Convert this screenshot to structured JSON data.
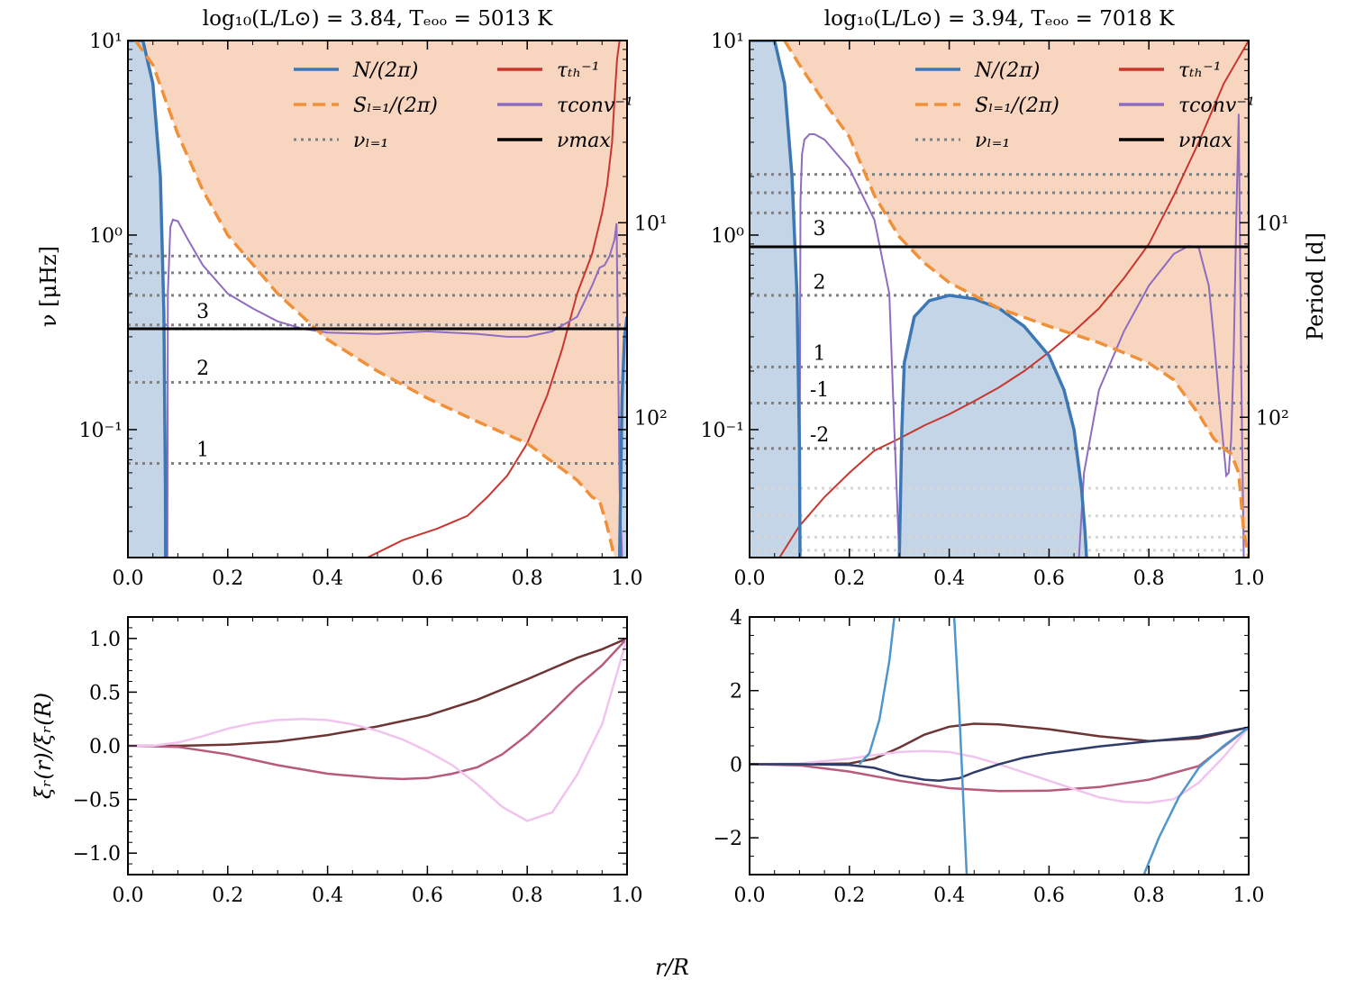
{
  "figure": {
    "xlabel": "r/R",
    "panels_top": [
      {
        "title": "log₁₀(L/L⊙) = 3.84, Tₑₒₒ = 5013 K",
        "ylabel_left": "ν [μHz]",
        "ylabel_right": "",
        "right_ticks": [
          "10¹",
          "10²"
        ]
      },
      {
        "title": "log₁₀(L/L⊙) = 3.94, Tₑₒₒ = 7018 K",
        "ylabel_left": "",
        "ylabel_right": "Period [d]",
        "right_ticks": [
          "10¹",
          "10²"
        ]
      }
    ],
    "panels_bottom": [
      {
        "ylabel": "ξᵣ(r)/ξᵣ(R)"
      },
      {
        "ylabel": ""
      }
    ],
    "legend": {
      "items": [
        {
          "label": "N/(2π)",
          "color": "#3d78b5",
          "style": "solid"
        },
        {
          "label": "Sₗ₌₁/(2π)",
          "color": "#f0913a",
          "style": "dashed"
        },
        {
          "label": "νₗ₌₁",
          "color": "#808080",
          "style": "dotted"
        },
        {
          "label": "τₜₕ⁻¹",
          "color": "#c8362e",
          "style": "solid"
        },
        {
          "label": "τconv⁻¹",
          "color": "#8e6cc0",
          "style": "solid"
        },
        {
          "label": "νmax",
          "color": "#000000",
          "style": "solid"
        }
      ]
    },
    "colors": {
      "N": "#3d78b5",
      "N_fill": "#c4d5e8",
      "S": "#f0913a",
      "S_fill": "#f8d5bf",
      "tau_th": "#c8362e",
      "tau_conv": "#8e6cc0",
      "mode1": "#6e3535",
      "mode2": "#b85a7e",
      "mode3": "#f0c4ee",
      "modem1": "#2f3c6a",
      "modem2": "#4f96cc"
    }
  },
  "chart_data": [
    {
      "type": "line",
      "panel": "top-left",
      "xlim": [
        0,
        1
      ],
      "ylim": [
        0.022,
        10
      ],
      "yscale": "log",
      "xticks": [
        "0.0",
        "0.2",
        "0.4",
        "0.6",
        "0.8",
        "1.0"
      ],
      "yticks": [
        "10⁻¹",
        "10⁰",
        "10¹"
      ],
      "nu_max": 0.33,
      "nu_l1": [
        0.067,
        0.175,
        0.345,
        0.49,
        0.64,
        0.78
      ],
      "mode_labels": [
        {
          "text": "1",
          "x": 0.15,
          "y": 0.073,
          "color": "mode1"
        },
        {
          "text": "2",
          "x": 0.15,
          "y": 0.192,
          "color": "mode2"
        },
        {
          "text": "3",
          "x": 0.15,
          "y": 0.375,
          "color": "mode3"
        }
      ],
      "series": [
        {
          "name": "N",
          "x": [
            0.0,
            0.03,
            0.05,
            0.065,
            0.072,
            0.075,
            0.0755
          ],
          "y": [
            10,
            10,
            6,
            2.0,
            0.4,
            0.05,
            0.022
          ]
        },
        {
          "name": "N_right",
          "x": [
            0.985,
            0.99,
            0.995,
            1.0
          ],
          "y": [
            0.022,
            0.15,
            0.3,
            0.38
          ]
        },
        {
          "name": "S",
          "x": [
            0.015,
            0.05,
            0.1,
            0.15,
            0.2,
            0.3,
            0.4,
            0.5,
            0.6,
            0.7,
            0.8,
            0.9,
            0.93,
            0.945,
            0.96,
            0.975
          ],
          "y": [
            10,
            7.5,
            3.3,
            1.7,
            1.0,
            0.5,
            0.29,
            0.2,
            0.145,
            0.11,
            0.085,
            0.055,
            0.045,
            0.043,
            0.032,
            0.022
          ]
        },
        {
          "name": "tau_th",
          "x": [
            0.48,
            0.55,
            0.62,
            0.68,
            0.72,
            0.76,
            0.8,
            0.84,
            0.87,
            0.9,
            0.93,
            0.95,
            0.96,
            0.97,
            0.975,
            0.98,
            0.985
          ],
          "y": [
            0.022,
            0.027,
            0.031,
            0.036,
            0.045,
            0.058,
            0.085,
            0.15,
            0.26,
            0.5,
            0.8,
            1.3,
            1.8,
            3.0,
            5.0,
            8.0,
            10.0
          ]
        },
        {
          "name": "tau_conv",
          "x": [
            0.079,
            0.08,
            0.085,
            0.09,
            0.1,
            0.12,
            0.15,
            0.2,
            0.25,
            0.3,
            0.35,
            0.4,
            0.5,
            0.6,
            0.7,
            0.76,
            0.8,
            0.85,
            0.9,
            0.93,
            0.945,
            0.955,
            0.965,
            0.975,
            0.979,
            0.982,
            0.985,
            0.99
          ],
          "y": [
            0.022,
            0.5,
            1.1,
            1.2,
            1.18,
            0.95,
            0.7,
            0.5,
            0.42,
            0.36,
            0.33,
            0.315,
            0.31,
            0.32,
            0.31,
            0.3,
            0.3,
            0.32,
            0.38,
            0.55,
            0.68,
            0.7,
            0.78,
            0.95,
            1.15,
            0.25,
            0.05,
            0.022
          ]
        }
      ]
    },
    {
      "type": "line",
      "panel": "top-right",
      "xlim": [
        0,
        1
      ],
      "ylim": [
        0.022,
        10
      ],
      "yscale": "log",
      "xticks": [
        "0.0",
        "0.2",
        "0.4",
        "0.6",
        "0.8",
        "1.0"
      ],
      "yticks": [
        "10⁻¹",
        "10⁰",
        "10¹"
      ],
      "nu_max": 0.87,
      "nu_l1": [
        0.08,
        0.137,
        0.21,
        0.49,
        1.3,
        1.65,
        2.05
      ],
      "nu_l1_faint": [
        0.024,
        0.028,
        0.036,
        0.05
      ],
      "mode_labels": [
        {
          "text": "-2",
          "x": 0.14,
          "y": 0.087,
          "color": "modem2"
        },
        {
          "text": "-1",
          "x": 0.14,
          "y": 0.148,
          "color": "modem1"
        },
        {
          "text": "1",
          "x": 0.14,
          "y": 0.228,
          "color": "mode1"
        },
        {
          "text": "2",
          "x": 0.14,
          "y": 0.53,
          "color": "mode2"
        },
        {
          "text": "3",
          "x": 0.14,
          "y": 1.0,
          "color": "mode3"
        }
      ],
      "series": [
        {
          "name": "N",
          "x": [
            0.0,
            0.05,
            0.07,
            0.085,
            0.095,
            0.1,
            0.101
          ],
          "y": [
            10,
            10,
            6,
            2.0,
            0.5,
            0.08,
            0.022
          ]
        },
        {
          "name": "N_hump",
          "x": [
            0.3,
            0.305,
            0.31,
            0.33,
            0.36,
            0.4,
            0.45,
            0.5,
            0.55,
            0.6,
            0.63,
            0.65,
            0.665,
            0.672,
            0.675
          ],
          "y": [
            0.022,
            0.1,
            0.22,
            0.38,
            0.46,
            0.49,
            0.47,
            0.42,
            0.34,
            0.24,
            0.16,
            0.1,
            0.05,
            0.03,
            0.022
          ]
        },
        {
          "name": "S",
          "x": [
            0.07,
            0.1,
            0.15,
            0.2,
            0.25,
            0.3,
            0.35,
            0.4,
            0.5,
            0.6,
            0.7,
            0.8,
            0.85,
            0.9,
            0.93,
            0.95,
            0.965,
            0.98,
            0.99,
            1.0
          ],
          "y": [
            10,
            7.5,
            4.8,
            3.2,
            1.6,
            0.98,
            0.72,
            0.57,
            0.42,
            0.34,
            0.28,
            0.22,
            0.18,
            0.12,
            0.09,
            0.08,
            0.075,
            0.06,
            0.03,
            0.022
          ]
        },
        {
          "name": "tau_th",
          "x": [
            0.06,
            0.1,
            0.15,
            0.2,
            0.25,
            0.3,
            0.35,
            0.4,
            0.45,
            0.5,
            0.55,
            0.6,
            0.65,
            0.7,
            0.75,
            0.8,
            0.85,
            0.9,
            0.95,
            1.0
          ],
          "y": [
            0.022,
            0.032,
            0.045,
            0.06,
            0.078,
            0.09,
            0.105,
            0.12,
            0.14,
            0.165,
            0.2,
            0.25,
            0.32,
            0.42,
            0.6,
            0.9,
            1.6,
            3.0,
            6.0,
            10.0
          ]
        },
        {
          "name": "tau_conv",
          "x": [
            0.1,
            0.102,
            0.105,
            0.11,
            0.12,
            0.13,
            0.15,
            0.2,
            0.25,
            0.28,
            0.29,
            0.3
          ],
          "y": [
            0.022,
            1.5,
            2.6,
            3.1,
            3.3,
            3.3,
            3.1,
            2.2,
            1.2,
            0.5,
            0.1,
            0.022
          ]
        },
        {
          "name": "tau_conv_right",
          "x": [
            0.66,
            0.67,
            0.7,
            0.75,
            0.8,
            0.85,
            0.88,
            0.9,
            0.92,
            0.93,
            0.94,
            0.95,
            0.955,
            0.96,
            0.965,
            0.97,
            0.975,
            0.98,
            0.985,
            0.99
          ],
          "y": [
            0.022,
            0.06,
            0.16,
            0.32,
            0.55,
            0.8,
            0.88,
            0.86,
            0.55,
            0.3,
            0.15,
            0.08,
            0.058,
            0.06,
            0.09,
            0.25,
            1.2,
            4.2,
            0.2,
            0.022
          ]
        }
      ]
    },
    {
      "type": "line",
      "panel": "bottom-left",
      "xlim": [
        0,
        1
      ],
      "ylim": [
        -1.2,
        1.2
      ],
      "xticks": [
        "0.0",
        "0.2",
        "0.4",
        "0.6",
        "0.8",
        "1.0"
      ],
      "yticks": [
        "−1.0",
        "−0.5",
        "0.0",
        "0.5",
        "1.0"
      ],
      "ytick_values": [
        -1.0,
        -0.5,
        0.0,
        0.5,
        1.0
      ],
      "series": [
        {
          "name": "1",
          "color": "mode1",
          "x": [
            0,
            0.1,
            0.2,
            0.3,
            0.4,
            0.5,
            0.6,
            0.7,
            0.8,
            0.9,
            0.95,
            1.0
          ],
          "y": [
            0,
            0.0,
            0.01,
            0.04,
            0.1,
            0.18,
            0.28,
            0.43,
            0.62,
            0.82,
            0.9,
            1.0
          ]
        },
        {
          "name": "2",
          "color": "mode2",
          "x": [
            0,
            0.1,
            0.2,
            0.3,
            0.4,
            0.5,
            0.55,
            0.6,
            0.65,
            0.7,
            0.75,
            0.8,
            0.85,
            0.9,
            0.95,
            1.0
          ],
          "y": [
            0,
            -0.01,
            -0.08,
            -0.18,
            -0.26,
            -0.3,
            -0.31,
            -0.3,
            -0.26,
            -0.2,
            -0.08,
            0.1,
            0.32,
            0.55,
            0.75,
            1.0
          ]
        },
        {
          "name": "3",
          "color": "mode3",
          "x": [
            0,
            0.05,
            0.1,
            0.15,
            0.2,
            0.25,
            0.3,
            0.35,
            0.4,
            0.45,
            0.5,
            0.55,
            0.6,
            0.65,
            0.7,
            0.75,
            0.8,
            0.85,
            0.9,
            0.95,
            1.0
          ],
          "y": [
            0,
            0.0,
            0.03,
            0.09,
            0.16,
            0.21,
            0.24,
            0.25,
            0.24,
            0.2,
            0.14,
            0.06,
            -0.05,
            -0.18,
            -0.36,
            -0.57,
            -0.7,
            -0.62,
            -0.27,
            0.2,
            1.0
          ]
        }
      ]
    },
    {
      "type": "line",
      "panel": "bottom-right",
      "xlim": [
        0,
        1
      ],
      "ylim": [
        -3,
        4
      ],
      "xticks": [
        "0.0",
        "0.2",
        "0.4",
        "0.6",
        "0.8",
        "1.0"
      ],
      "yticks": [
        "−2",
        "0",
        "2",
        "4"
      ],
      "ytick_values": [
        -2,
        0,
        2,
        4
      ],
      "series": [
        {
          "name": "1",
          "color": "mode1",
          "x": [
            0,
            0.1,
            0.2,
            0.25,
            0.3,
            0.35,
            0.4,
            0.45,
            0.5,
            0.6,
            0.7,
            0.8,
            0.9,
            1.0
          ],
          "y": [
            0,
            0,
            0.02,
            0.15,
            0.45,
            0.8,
            1.02,
            1.1,
            1.08,
            0.95,
            0.76,
            0.63,
            0.7,
            1.0
          ]
        },
        {
          "name": "2",
          "color": "mode2",
          "x": [
            0,
            0.1,
            0.2,
            0.3,
            0.4,
            0.5,
            0.6,
            0.7,
            0.8,
            0.9,
            1.0
          ],
          "y": [
            0,
            -0.03,
            -0.2,
            -0.45,
            -0.65,
            -0.73,
            -0.72,
            -0.62,
            -0.42,
            -0.05,
            1.0
          ]
        },
        {
          "name": "3",
          "color": "mode3",
          "x": [
            0,
            0.1,
            0.2,
            0.25,
            0.3,
            0.35,
            0.4,
            0.45,
            0.5,
            0.6,
            0.7,
            0.75,
            0.8,
            0.85,
            0.9,
            0.95,
            1.0
          ],
          "y": [
            0,
            0.02,
            0.15,
            0.25,
            0.33,
            0.36,
            0.33,
            0.2,
            0.0,
            -0.45,
            -0.9,
            -1.02,
            -1.05,
            -0.95,
            -0.5,
            0.2,
            1.0
          ]
        },
        {
          "name": "-1",
          "color": "modem1",
          "x": [
            0,
            0.1,
            0.2,
            0.25,
            0.3,
            0.35,
            0.38,
            0.42,
            0.45,
            0.5,
            0.55,
            0.6,
            0.7,
            0.8,
            0.9,
            1.0
          ],
          "y": [
            0,
            0,
            -0.02,
            -0.1,
            -0.3,
            -0.42,
            -0.45,
            -0.38,
            -0.22,
            0.0,
            0.18,
            0.3,
            0.48,
            0.62,
            0.75,
            1.0
          ]
        },
        {
          "name": "-2",
          "color": "modem2",
          "x": [
            0.22,
            0.24,
            0.26,
            0.28,
            0.29
          ],
          "y": [
            0,
            0.3,
            1.2,
            2.8,
            4.0
          ]
        },
        {
          "name": "-2b",
          "color": "modem2",
          "x": [
            0.41,
            0.42,
            0.43,
            0.435
          ],
          "y": [
            4.0,
            1.5,
            -1.5,
            -3.0
          ]
        },
        {
          "name": "-2c",
          "color": "modem2",
          "x": [
            0.79,
            0.82,
            0.86,
            0.9,
            0.95,
            1.0
          ],
          "y": [
            -3.0,
            -2.0,
            -0.9,
            -0.1,
            0.5,
            1.0
          ]
        }
      ]
    }
  ]
}
